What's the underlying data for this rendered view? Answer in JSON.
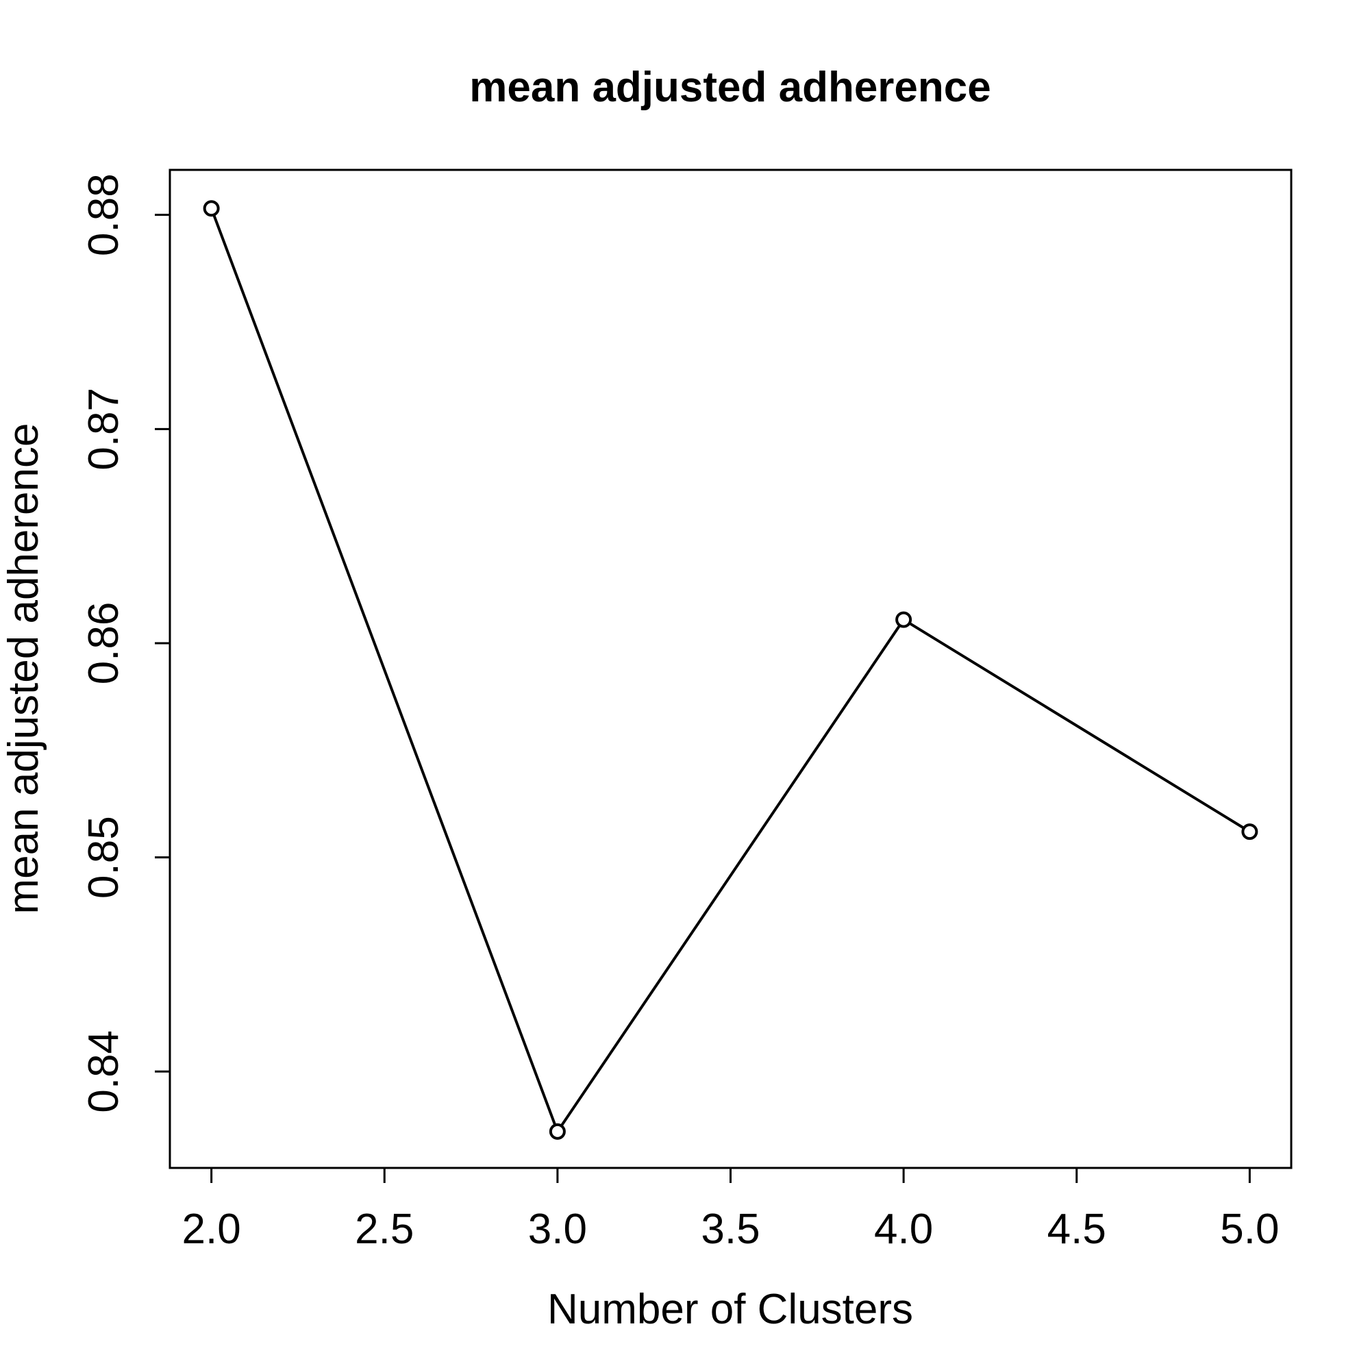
{
  "chart_data": {
    "type": "line",
    "title": "mean adjusted adherence",
    "xlabel": "Number of Clusters",
    "ylabel": "mean adjusted adherence",
    "xlim": [
      1.88,
      5.12
    ],
    "ylim": [
      0.8355,
      0.8821
    ],
    "x_ticks": [
      "2.0",
      "2.5",
      "3.0",
      "3.5",
      "4.0",
      "4.5",
      "5.0"
    ],
    "y_ticks": [
      "0.84",
      "0.85",
      "0.86",
      "0.87",
      "0.88"
    ],
    "grid": false,
    "line_color": "#000000",
    "marker": "open-circle",
    "series": [
      {
        "x": [
          2,
          3,
          4,
          5
        ],
        "values": [
          0.8803,
          0.8372,
          0.8611,
          0.8512
        ]
      }
    ]
  }
}
